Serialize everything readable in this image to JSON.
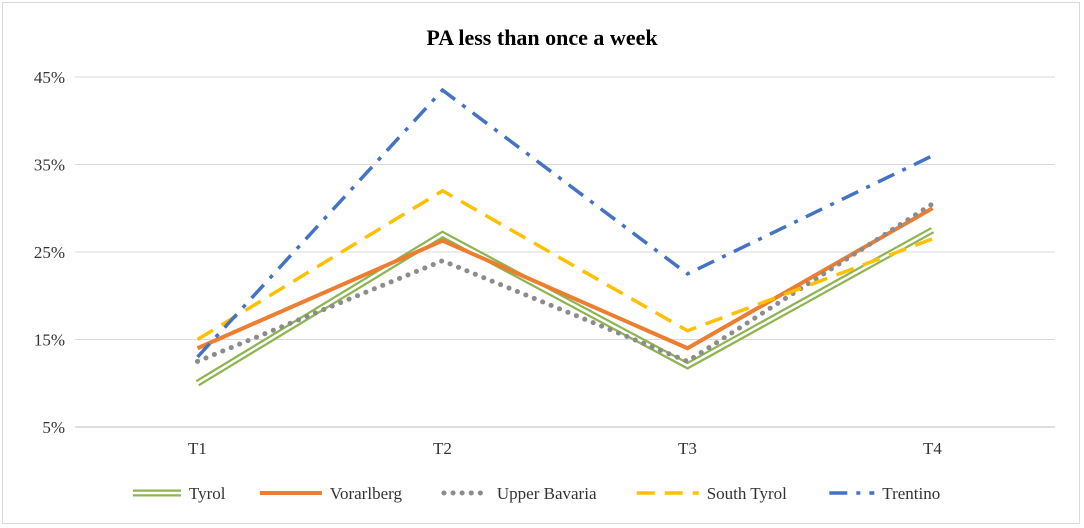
{
  "chart_data": {
    "type": "line",
    "title": "PA less than once a week",
    "xlabel": "",
    "ylabel": "",
    "categories": [
      "T1",
      "T2",
      "T3",
      "T4"
    ],
    "yticks": [
      "45%",
      "35%",
      "25%",
      "15%",
      "5%"
    ],
    "ylim": [
      5,
      45
    ],
    "grid": true,
    "legend_position": "bottom",
    "series": [
      {
        "name": "Tyrol",
        "values": [
          10.0,
          27.0,
          12.0,
          27.5
        ],
        "color": "#8db451",
        "style": "double"
      },
      {
        "name": "Vorarlberg",
        "values": [
          14.0,
          26.3,
          14.0,
          30.0
        ],
        "color": "#ed7d31",
        "style": "solid"
      },
      {
        "name": "Upper Bavaria",
        "values": [
          12.5,
          24.0,
          12.5,
          30.5
        ],
        "color": "#8c8c8c",
        "style": "dotted"
      },
      {
        "name": "South Tyrol",
        "values": [
          15.0,
          32.0,
          16.0,
          26.5
        ],
        "color": "#ffc000",
        "style": "dashed"
      },
      {
        "name": "Trentino",
        "values": [
          13.0,
          43.5,
          22.5,
          36.0
        ],
        "color": "#4472c4",
        "style": "dashdot"
      }
    ]
  }
}
